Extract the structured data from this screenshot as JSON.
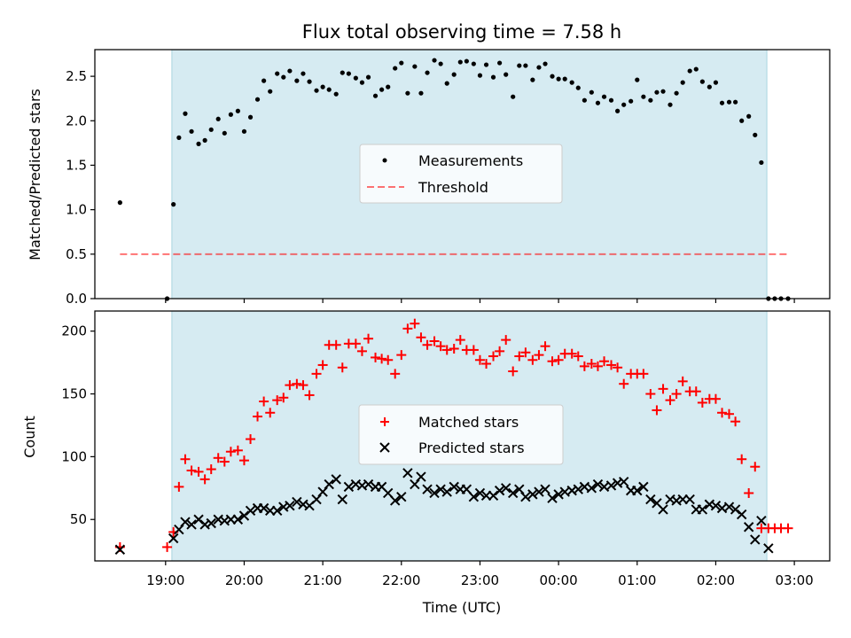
{
  "chart_data": [
    {
      "type": "scatter",
      "title": "Flux total observing time = 7.58 h",
      "xlabel": "",
      "ylabel": "Matched/Predicted stars",
      "ylim": [
        0,
        2.8
      ],
      "yticks": [
        "0.0",
        "0.5",
        "1.0",
        "1.5",
        "2.0",
        "2.5"
      ],
      "shaded_region": [
        19.08,
        26.65
      ],
      "threshold": 0.5,
      "threshold_range": [
        18.42,
        26.92
      ],
      "legend": {
        "position": "center",
        "entries": [
          "Measurements",
          "Threshold"
        ]
      },
      "series": [
        {
          "name": "Measurements",
          "marker": "dot",
          "color": "#000000",
          "x": [
            18.42,
            19.02,
            19.1,
            19.17,
            19.25,
            19.33,
            19.42,
            19.5,
            19.58,
            19.67,
            19.75,
            19.83,
            19.92,
            20.0,
            20.08,
            20.17,
            20.25,
            20.33,
            20.42,
            20.5,
            20.58,
            20.67,
            20.75,
            20.83,
            20.92,
            21.0,
            21.08,
            21.17,
            21.25,
            21.33,
            21.42,
            21.5,
            21.58,
            21.67,
            21.75,
            21.83,
            21.92,
            22.0,
            22.08,
            22.17,
            22.25,
            22.33,
            22.42,
            22.5,
            22.58,
            22.67,
            22.75,
            22.83,
            22.92,
            23.0,
            23.08,
            23.17,
            23.25,
            23.33,
            23.42,
            23.5,
            23.58,
            23.67,
            23.75,
            23.83,
            23.92,
            24.0,
            24.08,
            24.17,
            24.25,
            24.33,
            24.42,
            24.5,
            24.58,
            24.67,
            24.75,
            24.83,
            24.92,
            25.0,
            25.08,
            25.17,
            25.25,
            25.33,
            25.42,
            25.5,
            25.58,
            25.67,
            25.75,
            25.83,
            25.92,
            26.0,
            26.08,
            26.17,
            26.25,
            26.33,
            26.42,
            26.5,
            26.58,
            26.67,
            26.75,
            26.83,
            26.92
          ],
          "y": [
            1.08,
            0.0,
            1.06,
            1.81,
            2.08,
            1.88,
            1.74,
            1.78,
            1.9,
            2.02,
            1.86,
            2.07,
            2.11,
            1.88,
            2.04,
            2.24,
            2.45,
            2.33,
            2.53,
            2.49,
            2.56,
            2.45,
            2.53,
            2.44,
            2.34,
            2.38,
            2.35,
            2.3,
            2.54,
            2.53,
            2.48,
            2.43,
            2.49,
            2.28,
            2.35,
            2.38,
            2.59,
            2.65,
            2.31,
            2.61,
            2.31,
            2.54,
            2.68,
            2.64,
            2.42,
            2.52,
            2.66,
            2.67,
            2.64,
            2.51,
            2.63,
            2.49,
            2.65,
            2.52,
            2.27,
            2.62,
            2.62,
            2.46,
            2.6,
            2.64,
            2.5,
            2.47,
            2.47,
            2.43,
            2.37,
            2.23,
            2.32,
            2.2,
            2.27,
            2.23,
            2.11,
            2.18,
            2.22,
            2.46,
            2.27,
            2.23,
            2.32,
            2.33,
            2.18,
            2.31,
            2.43,
            2.56,
            2.58,
            2.44,
            2.38,
            2.43,
            2.2,
            2.21,
            2.21,
            2.0,
            2.05,
            1.84,
            1.53,
            0.0,
            0.0,
            0.0,
            0.0
          ]
        }
      ]
    },
    {
      "type": "scatter",
      "title": "",
      "xlabel": "Time (UTC)",
      "ylabel": "Count",
      "xlim": [
        18.1,
        27.45
      ],
      "ylim": [
        17,
        216
      ],
      "yticks": [
        50,
        100,
        150,
        200
      ],
      "xticks": [
        {
          "label": "19:00",
          "value": 19
        },
        {
          "label": "20:00",
          "value": 20
        },
        {
          "label": "21:00",
          "value": 21
        },
        {
          "label": "22:00",
          "value": 22
        },
        {
          "label": "23:00",
          "value": 23
        },
        {
          "label": "00:00",
          "value": 24
        },
        {
          "label": "01:00",
          "value": 25
        },
        {
          "label": "02:00",
          "value": 26
        },
        {
          "label": "03:00",
          "value": 27
        }
      ],
      "shaded_region": [
        19.08,
        26.65
      ],
      "legend": {
        "position": "center",
        "entries": [
          "Matched stars",
          "Predicted stars"
        ]
      },
      "series": [
        {
          "name": "Matched stars",
          "marker": "plus",
          "color": "#ff0000",
          "x": [
            18.42,
            19.02,
            19.1,
            19.17,
            19.25,
            19.33,
            19.42,
            19.5,
            19.58,
            19.67,
            19.75,
            19.83,
            19.92,
            20.0,
            20.08,
            20.17,
            20.25,
            20.33,
            20.42,
            20.5,
            20.58,
            20.67,
            20.75,
            20.83,
            20.92,
            21.0,
            21.08,
            21.17,
            21.25,
            21.33,
            21.42,
            21.5,
            21.58,
            21.67,
            21.75,
            21.83,
            21.92,
            22.0,
            22.08,
            22.17,
            22.25,
            22.33,
            22.42,
            22.5,
            22.58,
            22.67,
            22.75,
            22.83,
            22.92,
            23.0,
            23.08,
            23.17,
            23.25,
            23.33,
            23.42,
            23.5,
            23.58,
            23.67,
            23.75,
            23.83,
            23.92,
            24.0,
            24.08,
            24.17,
            24.25,
            24.33,
            24.42,
            24.5,
            24.58,
            24.67,
            24.75,
            24.83,
            24.92,
            25.0,
            25.08,
            25.17,
            25.25,
            25.33,
            25.42,
            25.5,
            25.58,
            25.67,
            25.75,
            25.83,
            25.92,
            26.0,
            26.08,
            26.17,
            26.25,
            26.33,
            26.42,
            26.5,
            26.58,
            26.67,
            26.75,
            26.83,
            26.92
          ],
          "y": [
            28,
            28,
            40,
            76,
            98,
            89,
            88,
            82,
            90,
            99,
            96,
            104,
            105,
            97,
            114,
            132,
            144,
            135,
            145,
            147,
            157,
            158,
            157,
            149,
            166,
            173,
            189,
            189,
            171,
            190,
            190,
            184,
            194,
            179,
            178,
            177,
            166,
            181,
            202,
            206,
            195,
            189,
            192,
            188,
            185,
            186,
            193,
            185,
            185,
            177,
            174,
            180,
            184,
            193,
            168,
            180,
            183,
            177,
            181,
            188,
            176,
            177,
            182,
            182,
            180,
            172,
            174,
            172,
            176,
            173,
            171,
            158,
            166,
            166,
            166,
            150,
            137,
            154,
            145,
            150,
            160,
            152,
            152,
            143,
            146,
            146,
            135,
            134,
            128,
            98,
            71,
            92,
            43,
            43,
            43,
            43,
            43
          ]
        },
        {
          "name": "Predicted stars",
          "marker": "x",
          "color": "#000000",
          "x": [
            18.42,
            19.1,
            19.17,
            19.25,
            19.33,
            19.42,
            19.5,
            19.58,
            19.67,
            19.75,
            19.83,
            19.92,
            20.0,
            20.08,
            20.17,
            20.25,
            20.33,
            20.42,
            20.5,
            20.58,
            20.67,
            20.75,
            20.83,
            20.92,
            21.0,
            21.08,
            21.17,
            21.25,
            21.33,
            21.42,
            21.5,
            21.58,
            21.67,
            21.75,
            21.83,
            21.92,
            22.0,
            22.08,
            22.17,
            22.25,
            22.33,
            22.42,
            22.5,
            22.58,
            22.67,
            22.75,
            22.83,
            22.92,
            23.0,
            23.08,
            23.17,
            23.25,
            23.33,
            23.42,
            23.5,
            23.58,
            23.67,
            23.75,
            23.83,
            23.92,
            24.0,
            24.08,
            24.17,
            24.25,
            24.33,
            24.42,
            24.5,
            24.58,
            24.67,
            24.75,
            24.83,
            24.92,
            25.0,
            25.08,
            25.17,
            25.25,
            25.33,
            25.42,
            25.5,
            25.58,
            25.67,
            25.75,
            25.83,
            25.92,
            26.0,
            26.08,
            26.17,
            26.25,
            26.33,
            26.42,
            26.5,
            26.58,
            26.67
          ],
          "y": [
            26,
            35,
            42,
            48,
            46,
            50,
            46,
            47,
            50,
            49,
            50,
            50,
            53,
            57,
            59,
            59,
            57,
            57,
            60,
            61,
            64,
            62,
            61,
            66,
            72,
            78,
            82,
            66,
            76,
            78,
            77,
            78,
            76,
            76,
            71,
            65,
            68,
            87,
            78,
            84,
            74,
            71,
            74,
            72,
            76,
            74,
            74,
            68,
            71,
            69,
            69,
            73,
            75,
            71,
            74,
            68,
            70,
            72,
            74,
            67,
            70,
            72,
            73,
            74,
            76,
            75,
            78,
            76,
            77,
            79,
            80,
            73,
            73,
            76,
            66,
            63,
            58,
            66,
            65,
            66,
            66,
            58,
            58,
            62,
            61,
            59,
            60,
            58,
            54,
            44,
            34,
            49,
            27
          ]
        }
      ]
    }
  ]
}
